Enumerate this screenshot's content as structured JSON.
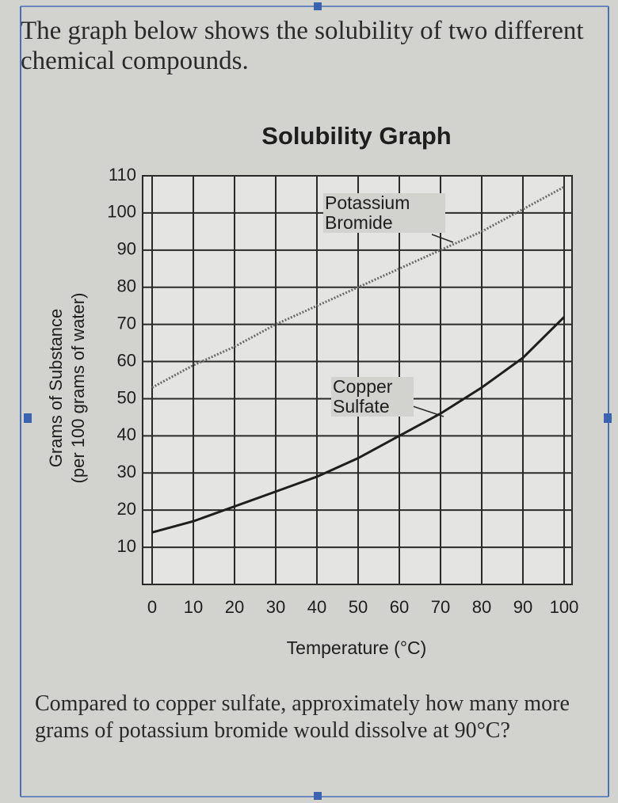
{
  "intro": "The graph below shows the solubility of two different chemical compounds.",
  "question": "Compared to copper sulfate, approximately how many more grams of potassium bromide would dissolve at 90°C?",
  "chart_data": {
    "type": "line",
    "title": "Solubility Graph",
    "xlabel": "Temperature (°C)",
    "ylabel": [
      "Grams of Substance",
      "(per 100 grams of water)"
    ],
    "x": [
      0,
      10,
      20,
      30,
      40,
      50,
      60,
      70,
      80,
      90,
      100
    ],
    "xlim": [
      0,
      100
    ],
    "xticks": [
      0,
      10,
      20,
      30,
      40,
      50,
      60,
      70,
      80,
      90,
      100
    ],
    "ylim": [
      0,
      110
    ],
    "yticks": [
      10,
      20,
      30,
      40,
      50,
      60,
      70,
      80,
      90,
      100,
      110
    ],
    "grid": true,
    "series": [
      {
        "name": "Potassium Bromide",
        "color": "#6a6a6a",
        "style": "dotted",
        "values": [
          53,
          59,
          64,
          70,
          75,
          80,
          85,
          90,
          95,
          101,
          107
        ]
      },
      {
        "name": "Copper Sulfate",
        "color": "#1e1e1e",
        "style": "solid",
        "values": [
          14,
          17,
          21,
          25,
          29,
          34,
          40,
          46,
          53,
          61,
          72
        ]
      }
    ]
  }
}
